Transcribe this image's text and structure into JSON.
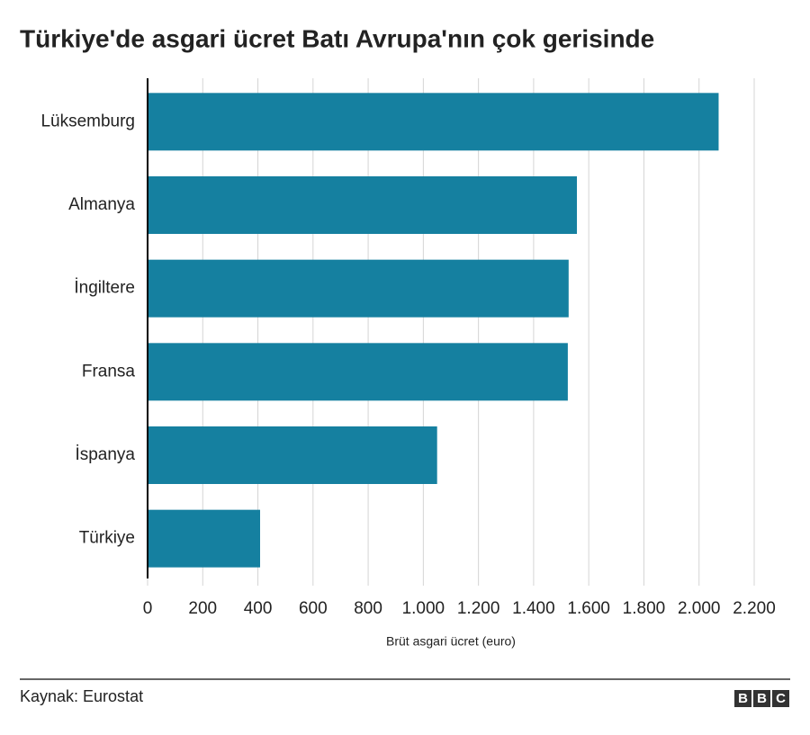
{
  "chart_data": {
    "type": "bar",
    "orientation": "horizontal",
    "title": "Türkiye'de asgari ücret Batı Avrupa'nın çok gerisinde",
    "categories": [
      "Lüksemburg",
      "Almanya",
      "İngiltere",
      "Fransa",
      "İspanya",
      "Türkiye"
    ],
    "values": [
      2071,
      1557,
      1527,
      1524,
      1050,
      408
    ],
    "color": "#1580a0",
    "xlim": [
      0,
      2200
    ],
    "xticks": [
      0,
      200,
      400,
      600,
      800,
      {
        "value": 1000,
        "label": "1.000"
      },
      {
        "value": 1200,
        "label": "1.200"
      },
      {
        "value": 1400,
        "label": "1.400"
      },
      {
        "value": 1600,
        "label": "1.600"
      },
      {
        "value": 1800,
        "label": "1.800"
      },
      {
        "value": 2000,
        "label": "2.000"
      },
      {
        "value": 2200,
        "label": "2.200"
      }
    ],
    "xlabel": "Brüt asgari ücret (euro)",
    "grid": true,
    "source": "Kaynak: Eurostat",
    "logo": [
      "B",
      "B",
      "C"
    ]
  }
}
